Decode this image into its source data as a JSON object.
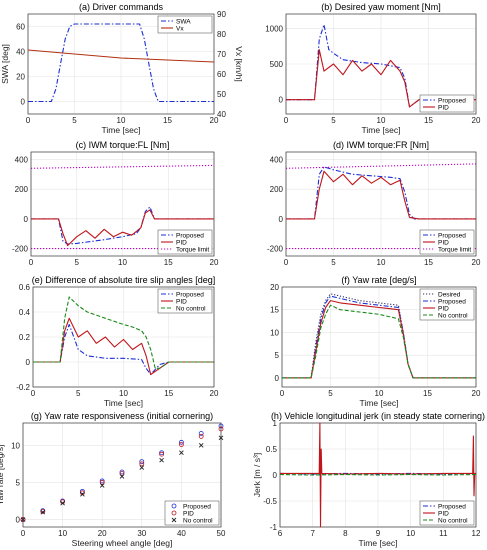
{
  "chart_data": [
    {
      "id": "a",
      "type": "line",
      "title": "(a) Driver commands",
      "xlabel": "Time [sec]",
      "ylabel": "SWA [deg]",
      "ylabel_right": "Vx [km/h]",
      "xlim": [
        0,
        20
      ],
      "ylim": [
        -10,
        70
      ],
      "ylim_right": [
        40,
        90
      ],
      "xticks": [
        0,
        5,
        10,
        15,
        20
      ],
      "yticks": [
        0,
        20,
        40,
        60
      ],
      "yticks_right": [
        40,
        50,
        60,
        70,
        80,
        90
      ],
      "colors": {
        "left_axis": "#1f77d4",
        "right_axis": "#b5651d"
      },
      "legend": {
        "entries": [
          "SWA",
          "Vx"
        ],
        "position": "top-right"
      },
      "series": [
        {
          "name": "SWA",
          "axis": "left",
          "color": "#1c2ed6",
          "dash": "dashdot",
          "x": [
            0,
            2.5,
            3,
            3.5,
            4,
            4.5,
            5,
            12,
            12.5,
            13,
            13.5,
            14,
            20
          ],
          "y": [
            0,
            0,
            10,
            30,
            50,
            60,
            62,
            62,
            50,
            30,
            10,
            0,
            0
          ]
        },
        {
          "name": "Vx",
          "axis": "right",
          "color": "#b03010",
          "x": [
            0,
            5,
            10,
            15,
            20
          ],
          "y": [
            72,
            70,
            68,
            67,
            66
          ]
        }
      ]
    },
    {
      "id": "b",
      "type": "line",
      "title": "(b) Desired yaw moment [Nm]",
      "xlabel": "Time [sec]",
      "ylabel": "",
      "xlim": [
        0,
        20
      ],
      "ylim": [
        -200,
        1200
      ],
      "xticks": [
        0,
        5,
        10,
        15,
        20
      ],
      "yticks": [
        0,
        500,
        1000
      ],
      "legend": {
        "entries": [
          "Proposed",
          "PID"
        ],
        "position": "bottom-right"
      },
      "series": [
        {
          "name": "Proposed",
          "color": "#1c2ed6",
          "dash": "dashdot",
          "x": [
            0,
            3,
            3.5,
            4,
            4.5,
            5,
            6,
            8,
            10,
            12,
            12.5,
            13,
            14,
            20
          ],
          "y": [
            0,
            0,
            850,
            1050,
            700,
            650,
            560,
            520,
            500,
            450,
            300,
            -100,
            0,
            0
          ]
        },
        {
          "name": "PID",
          "color": "#c0151a",
          "x": [
            0,
            3,
            3.5,
            4,
            5,
            6,
            7,
            8,
            9,
            10,
            11,
            12,
            12.5,
            13,
            14,
            20
          ],
          "y": [
            0,
            0,
            700,
            400,
            500,
            350,
            550,
            400,
            500,
            350,
            550,
            400,
            250,
            -100,
            0,
            0
          ]
        }
      ]
    },
    {
      "id": "c",
      "type": "line",
      "title": "(c) IWM torque:FL [Nm]",
      "xlabel": "",
      "ylabel": "",
      "xlim": [
        0,
        20
      ],
      "ylim": [
        -250,
        450
      ],
      "xticks": [
        0,
        5,
        10,
        15,
        20
      ],
      "yticks": [
        -200,
        0,
        200,
        400
      ],
      "legend": {
        "entries": [
          "Proposed",
          "PID",
          "Torque limit"
        ],
        "position": "bottom-right"
      },
      "series": [
        {
          "name": "Proposed",
          "color": "#1c2ed6",
          "dash": "dashdot",
          "x": [
            0,
            3,
            3.5,
            4,
            5,
            8,
            10,
            11.5,
            12,
            12.5,
            13,
            13.5,
            14,
            20
          ],
          "y": [
            0,
            0,
            -150,
            -170,
            -165,
            -140,
            -120,
            -100,
            -60,
            50,
            80,
            0,
            0,
            0
          ]
        },
        {
          "name": "PID",
          "color": "#c0151a",
          "x": [
            0,
            3,
            3.5,
            4,
            5,
            6,
            7,
            8,
            9,
            10,
            11,
            12,
            12.5,
            13,
            13.5,
            14,
            20
          ],
          "y": [
            0,
            0,
            -100,
            -180,
            -120,
            -80,
            -130,
            -70,
            -120,
            -90,
            -110,
            -60,
            40,
            60,
            0,
            0,
            0
          ]
        },
        {
          "name": "Torque limit",
          "color": "#c000c8",
          "dash": "dot",
          "x": [
            0,
            20
          ],
          "y": [
            340,
            360
          ]
        },
        {
          "name": "Torque limit",
          "color": "#c000c8",
          "dash": "dot",
          "x": [
            0,
            20
          ],
          "y": [
            -200,
            -200
          ]
        }
      ]
    },
    {
      "id": "d",
      "type": "line",
      "title": "(d) IWM torque:FR [Nm]",
      "xlabel": "",
      "ylabel": "",
      "xlim": [
        0,
        20
      ],
      "ylim": [
        -250,
        450
      ],
      "xticks": [
        0,
        5,
        10,
        15,
        20
      ],
      "yticks": [
        -200,
        0,
        200,
        400
      ],
      "legend": {
        "entries": [
          "Proposed",
          "PID",
          "Torque limit"
        ],
        "position": "bottom-right"
      },
      "series": [
        {
          "name": "Proposed",
          "color": "#1c2ed6",
          "dash": "dashdot",
          "x": [
            0,
            3,
            3.5,
            4,
            5,
            7,
            9,
            11,
            12,
            12.5,
            13,
            13.5,
            14,
            20
          ],
          "y": [
            0,
            0,
            300,
            350,
            330,
            300,
            290,
            280,
            270,
            180,
            30,
            0,
            0,
            0
          ]
        },
        {
          "name": "PID",
          "color": "#c0151a",
          "x": [
            0,
            3,
            3.5,
            4,
            5,
            6,
            7,
            8,
            9,
            10,
            11,
            12,
            12.5,
            13,
            14,
            20
          ],
          "y": [
            0,
            0,
            200,
            320,
            250,
            300,
            230,
            290,
            240,
            280,
            230,
            260,
            120,
            10,
            0,
            0
          ]
        },
        {
          "name": "Torque limit",
          "color": "#c000c8",
          "dash": "dot",
          "x": [
            0,
            20
          ],
          "y": [
            340,
            370
          ]
        },
        {
          "name": "Torque limit",
          "color": "#c000c8",
          "dash": "dot",
          "x": [
            0,
            20
          ],
          "y": [
            -200,
            -200
          ]
        }
      ]
    },
    {
      "id": "e",
      "type": "line",
      "title": "(e) Difference of absolute tire slip angles [deg]",
      "xlabel": "Time [sec]",
      "ylabel": "",
      "xlim": [
        0,
        20
      ],
      "ylim": [
        -0.2,
        0.6
      ],
      "xticks": [
        0,
        5,
        10,
        15,
        20
      ],
      "yticks": [
        -0.2,
        0,
        0.2,
        0.4,
        0.6
      ],
      "legend": {
        "entries": [
          "Proposed",
          "PID",
          "No control"
        ],
        "position": "top-right"
      },
      "series": [
        {
          "name": "Proposed",
          "color": "#1c2ed6",
          "dash": "dashdot",
          "x": [
            0,
            3,
            3.5,
            4,
            5,
            6,
            8,
            10,
            12,
            12.5,
            13,
            14,
            15,
            20
          ],
          "y": [
            0,
            0,
            0.2,
            0.3,
            0.1,
            0.05,
            0.03,
            0.03,
            0.02,
            -0.05,
            -0.1,
            -0.02,
            0,
            0
          ]
        },
        {
          "name": "PID",
          "color": "#c0151a",
          "x": [
            0,
            3,
            3.5,
            4,
            5,
            6,
            7,
            8,
            9,
            10,
            11,
            12,
            12.5,
            13,
            14,
            15,
            20
          ],
          "y": [
            0,
            0,
            0.25,
            0.35,
            0.2,
            0.25,
            0.15,
            0.2,
            0.12,
            0.18,
            0.1,
            0.15,
            0.05,
            -0.1,
            -0.05,
            0,
            0
          ]
        },
        {
          "name": "No control",
          "color": "#1a8a1a",
          "dash": "dash",
          "x": [
            0,
            3,
            3.5,
            4,
            5,
            6,
            8,
            10,
            11,
            12,
            12.5,
            13,
            13.5,
            14,
            15,
            20
          ],
          "y": [
            0,
            0,
            0.35,
            0.52,
            0.45,
            0.4,
            0.35,
            0.3,
            0.28,
            0.25,
            0.2,
            0.1,
            -0.05,
            -0.05,
            0,
            0
          ]
        }
      ]
    },
    {
      "id": "f",
      "type": "line",
      "title": "(f) Yaw rate [deg/s]",
      "xlabel": "Time [sec]",
      "ylabel": "",
      "xlim": [
        0,
        20
      ],
      "ylim": [
        -2,
        20
      ],
      "xticks": [
        0,
        5,
        10,
        15,
        20
      ],
      "yticks": [
        0,
        5,
        10,
        15,
        20
      ],
      "legend": {
        "entries": [
          "Desired",
          "Proposed",
          "PID",
          "No control"
        ],
        "position": "top-right"
      },
      "series": [
        {
          "name": "Desired",
          "color": "#303060",
          "dash": "dot",
          "x": [
            0,
            3,
            3.5,
            4,
            4.5,
            5,
            6,
            8,
            10,
            12,
            12.5,
            13,
            13.5,
            20
          ],
          "y": [
            0,
            0,
            8,
            14,
            17,
            18.5,
            18,
            17,
            16.5,
            16,
            10,
            3,
            0,
            0
          ]
        },
        {
          "name": "Proposed",
          "color": "#1c2ed6",
          "dash": "dashdot",
          "x": [
            0,
            3,
            3.5,
            4,
            4.5,
            5,
            6,
            8,
            10,
            12,
            12.5,
            13,
            13.5,
            20
          ],
          "y": [
            0,
            0,
            7,
            13,
            16.5,
            18,
            17.5,
            16.5,
            16,
            15.5,
            10,
            3,
            0,
            0
          ]
        },
        {
          "name": "PID",
          "color": "#c0151a",
          "x": [
            0,
            3,
            3.5,
            4,
            4.5,
            5,
            6,
            8,
            10,
            12,
            12.5,
            13,
            13.5,
            20
          ],
          "y": [
            0,
            0,
            6,
            12,
            15.5,
            17,
            16.5,
            16,
            15.5,
            15,
            9.5,
            3,
            0,
            0
          ]
        },
        {
          "name": "No control",
          "color": "#1a8a1a",
          "dash": "dash",
          "x": [
            0,
            3,
            3.5,
            4,
            4.5,
            5,
            6,
            8,
            10,
            12,
            12.5,
            13,
            13.5,
            20
          ],
          "y": [
            0,
            0,
            5,
            11,
            14,
            16,
            15,
            14.5,
            14,
            13,
            9,
            3,
            0,
            0
          ]
        }
      ]
    },
    {
      "id": "g",
      "type": "scatter",
      "title": "(g) Yaw rate responsiveness (initial cornering)",
      "xlabel": "Steering wheel angle [deg]",
      "ylabel": "Yaw rate [deg/s]",
      "xlim": [
        0,
        50
      ],
      "ylim": [
        -1,
        13
      ],
      "xticks": [
        0,
        10,
        20,
        30,
        40,
        50
      ],
      "yticks": [
        0,
        5,
        10
      ],
      "legend": {
        "entries": [
          "Proposed",
          "PID",
          "No control"
        ],
        "position": "bottom-right"
      },
      "series": [
        {
          "name": "Proposed",
          "color": "#1c2ed6",
          "marker": "circle",
          "x": [
            0,
            5,
            10,
            15,
            20,
            25,
            30,
            35,
            40,
            45,
            50
          ],
          "y": [
            0,
            1.2,
            2.5,
            3.8,
            5.2,
            6.4,
            7.8,
            9.0,
            10.4,
            11.6,
            12.6
          ]
        },
        {
          "name": "PID",
          "color": "#c0151a",
          "marker": "circle",
          "x": [
            0,
            5,
            10,
            15,
            20,
            25,
            30,
            35,
            40,
            45,
            50
          ],
          "y": [
            0,
            1.1,
            2.4,
            3.6,
            5.0,
            6.2,
            7.5,
            8.8,
            10.1,
            11.2,
            12.2
          ]
        },
        {
          "name": "No control",
          "color": "#222222",
          "marker": "x",
          "x": [
            0,
            5,
            10,
            15,
            20,
            25,
            30,
            35,
            40,
            45,
            50
          ],
          "y": [
            0,
            1.0,
            2.2,
            3.4,
            4.6,
            5.8,
            7.0,
            8.0,
            9.0,
            10.0,
            11.0
          ]
        }
      ]
    },
    {
      "id": "h",
      "type": "line",
      "title": "(h) Vehicle longitudinal jerk (in steady state cornering)",
      "xlabel": "Time [sec]",
      "ylabel": "Jerk [m / s³]",
      "xlim": [
        6,
        12
      ],
      "ylim": [
        -1,
        1
      ],
      "xticks": [
        6,
        7,
        8,
        9,
        10,
        11,
        12
      ],
      "yticks": [
        -1,
        -0.5,
        0,
        0.5,
        1
      ],
      "legend": {
        "entries": [
          "Proposed",
          "PID",
          "No control"
        ],
        "position": "bottom-right"
      },
      "series": [
        {
          "name": "Proposed",
          "color": "#1c2ed6",
          "dash": "dashdot",
          "x": [
            6,
            7,
            8,
            9,
            10,
            11,
            12
          ],
          "y": [
            0.03,
            0.02,
            0.03,
            0.02,
            0.03,
            0.02,
            0.03
          ]
        },
        {
          "name": "PID",
          "color": "#c0151a",
          "x": [
            6,
            7.2,
            7.22,
            7.24,
            7.26,
            7.28,
            8,
            9,
            10,
            11,
            11.9,
            11.92,
            11.94,
            11.96,
            12
          ],
          "y": [
            0.03,
            0.03,
            1.0,
            -1.0,
            0.5,
            0.03,
            0.02,
            0.03,
            0.02,
            0.03,
            0.03,
            0.75,
            -0.4,
            0.03,
            0.03
          ]
        },
        {
          "name": "No control",
          "color": "#1a8a1a",
          "dash": "dash",
          "x": [
            6,
            7,
            8,
            9,
            10,
            11,
            12
          ],
          "y": [
            0.01,
            0.0,
            0.01,
            0.0,
            0.01,
            0.0,
            0.01
          ]
        }
      ]
    }
  ]
}
